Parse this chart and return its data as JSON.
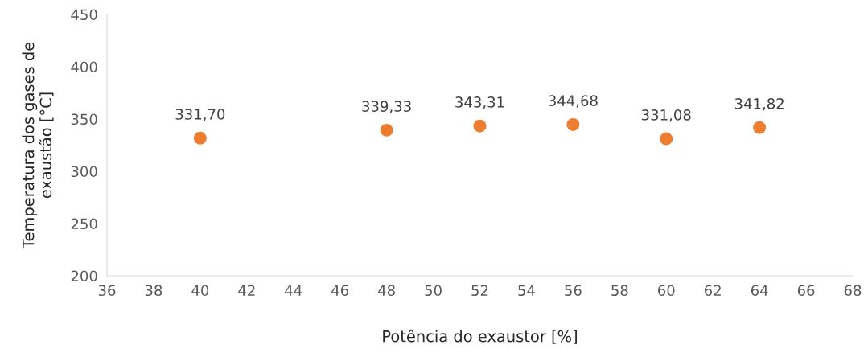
{
  "chart_data": {
    "type": "scatter",
    "xlabel": "Potência do exaustor [%]",
    "ylabel": "Temperatura dos gases de\nexaustão [°C]",
    "x": [
      40,
      48,
      52,
      56,
      60,
      64
    ],
    "series": [
      {
        "color": "#ed7d31",
        "values": [
          331.7,
          339.33,
          343.31,
          344.68,
          331.08,
          341.82
        ],
        "value_labels": [
          "331,70",
          "339,33",
          "343,31",
          "344,68",
          "331,08",
          "341,82"
        ]
      }
    ],
    "xlim": [
      36,
      68
    ],
    "xticks": [
      36,
      38,
      40,
      42,
      44,
      46,
      48,
      50,
      52,
      54,
      56,
      58,
      60,
      62,
      64,
      66,
      68
    ],
    "ylim": [
      200,
      450
    ],
    "yticks": [
      200,
      250,
      300,
      350,
      400,
      450
    ],
    "grid": false,
    "marker": "circle",
    "legend": false
  }
}
